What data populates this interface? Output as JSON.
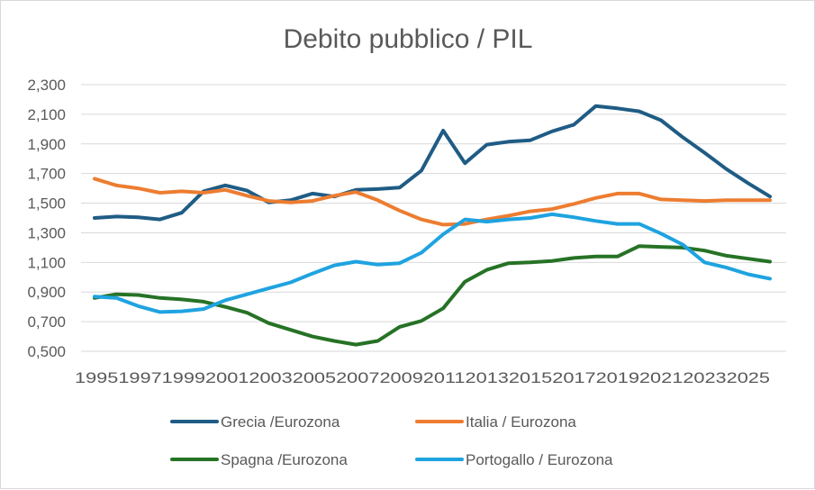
{
  "chart_data": {
    "type": "line",
    "title": "Debito pubblico / PIL",
    "xlabel": "",
    "ylabel": "",
    "ylim": [
      0.5,
      2.3
    ],
    "yticks": [
      "0,500",
      "0,700",
      "0,900",
      "1,100",
      "1,300",
      "1,500",
      "1,700",
      "1,900",
      "2,100",
      "2,300"
    ],
    "ytick_values": [
      0.5,
      0.7,
      0.9,
      1.1,
      1.3,
      1.5,
      1.7,
      1.9,
      2.1,
      2.3
    ],
    "categories": [
      "1995",
      "1996",
      "1997",
      "1998",
      "1999",
      "2000",
      "2001",
      "2002",
      "2003",
      "2004",
      "2005",
      "2006",
      "2007",
      "2008",
      "2009",
      "2010",
      "2011",
      "2012",
      "2013",
      "2014",
      "2015",
      "2016",
      "2017",
      "2018",
      "2019",
      "2020",
      "2021",
      "2022",
      "2023",
      "2024",
      "2025",
      "2026"
    ],
    "xtick_labels": [
      "1995",
      "1997",
      "1999",
      "2001",
      "2003",
      "2005",
      "2007",
      "2009",
      "2011",
      "2013",
      "2015",
      "2017",
      "2019",
      "2021",
      "2023",
      "2025"
    ],
    "xtick_indices": [
      0,
      2,
      4,
      6,
      8,
      10,
      12,
      14,
      16,
      18,
      20,
      22,
      24,
      26,
      28,
      30
    ],
    "grid": true,
    "legend_position": "bottom",
    "series": [
      {
        "name": "Grecia /Eurozona",
        "color": "#1f5c85",
        "values": [
          1.4,
          1.41,
          1.405,
          1.39,
          1.435,
          1.58,
          1.62,
          1.585,
          1.505,
          1.52,
          1.565,
          1.545,
          1.59,
          1.595,
          1.605,
          1.72,
          1.99,
          1.77,
          1.895,
          1.915,
          1.925,
          1.985,
          2.03,
          2.155,
          2.14,
          2.12,
          2.06,
          1.945,
          1.84,
          1.73,
          1.635,
          1.545
        ]
      },
      {
        "name": "Italia / Eurozona",
        "color": "#ed7d31",
        "values": [
          1.665,
          1.62,
          1.6,
          1.57,
          1.58,
          1.57,
          1.59,
          1.55,
          1.515,
          1.505,
          1.515,
          1.55,
          1.575,
          1.52,
          1.45,
          1.39,
          1.355,
          1.36,
          1.39,
          1.415,
          1.445,
          1.46,
          1.495,
          1.535,
          1.565,
          1.565,
          1.525,
          1.52,
          1.515,
          1.52,
          1.52,
          1.52
        ]
      },
      {
        "name": "Spagna /Eurozona",
        "color": "#267226",
        "values": [
          0.86,
          0.885,
          0.88,
          0.86,
          0.85,
          0.835,
          0.8,
          0.76,
          0.69,
          0.645,
          0.6,
          0.57,
          0.545,
          0.57,
          0.665,
          0.705,
          0.79,
          0.97,
          1.05,
          1.095,
          1.1,
          1.11,
          1.13,
          1.14,
          1.14,
          1.21,
          1.205,
          1.2,
          1.18,
          1.145,
          1.125,
          1.105
        ]
      },
      {
        "name": "Portogallo / Eurozona",
        "color": "#1fa3e0",
        "values": [
          0.87,
          0.86,
          0.805,
          0.765,
          0.77,
          0.785,
          0.845,
          0.885,
          0.925,
          0.965,
          1.025,
          1.08,
          1.105,
          1.085,
          1.095,
          1.165,
          1.29,
          1.39,
          1.375,
          1.39,
          1.4,
          1.425,
          1.405,
          1.38,
          1.36,
          1.36,
          1.295,
          1.22,
          1.1,
          1.065,
          1.02,
          0.99
        ]
      }
    ]
  }
}
